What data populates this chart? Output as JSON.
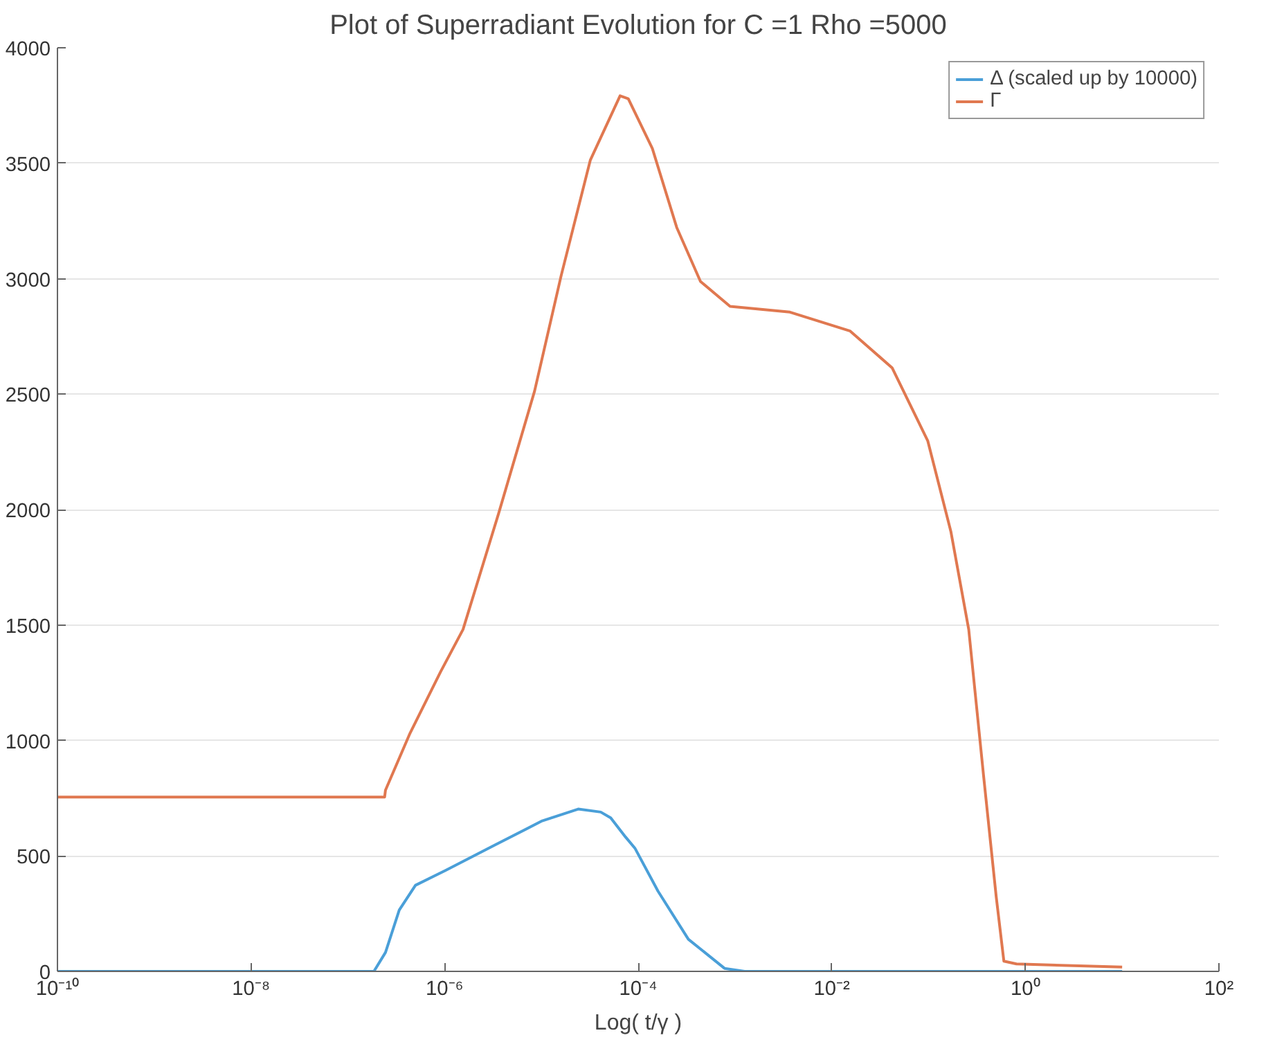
{
  "chart_data": {
    "type": "line",
    "title": "Plot of Superradiant Evolution for C =1 Rho =5000",
    "xlabel": "Log( t/γ )",
    "log": "x",
    "xlim": [
      1e-10,
      100
    ],
    "ylim": [
      0,
      4000
    ],
    "xticks": [
      {
        "value": 1e-10,
        "label": "10⁻¹⁰"
      },
      {
        "value": 1e-08,
        "label": "10⁻⁸"
      },
      {
        "value": 1e-06,
        "label": "10⁻⁶"
      },
      {
        "value": 0.0001,
        "label": "10⁻⁴"
      },
      {
        "value": 0.01,
        "label": "10⁻²"
      },
      {
        "value": 1,
        "label": "10⁰"
      },
      {
        "value": 100,
        "label": "10²"
      }
    ],
    "yticks": [
      0,
      500,
      1000,
      1500,
      2000,
      2500,
      3000,
      3500,
      4000
    ],
    "grid": "y",
    "legend": "top right",
    "line_style": "solid",
    "marker": "none",
    "series": [
      {
        "name": "Δ (scaled up by 10000)",
        "color": "#4a9fd8",
        "x": [
          1e-10,
          1.86e-07,
          2.45e-07,
          3.4e-07,
          5e-07,
          1.02e-06,
          3.2e-06,
          1.02e-05,
          2.4e-05,
          4.1e-05,
          5.2e-05,
          7.4e-05,
          9.3e-05,
          0.00016,
          0.00033,
          0.00078,
          0.00126,
          10
        ],
        "values": [
          0,
          0,
          82,
          266,
          373,
          437,
          544,
          652,
          703,
          690,
          665,
          582,
          532,
          348,
          139,
          13,
          0,
          0
        ]
      },
      {
        "name": "Γ",
        "color": "#e07850",
        "x": [
          1e-10,
          2.4e-07,
          2.45e-07,
          4.4e-07,
          9.1e-07,
          1.55e-06,
          3.6e-06,
          8.5e-06,
          1.6e-05,
          3.2e-05,
          6.5e-05,
          7.9e-05,
          0.00014,
          0.00025,
          0.00044,
          0.00089,
          0.0037,
          0.0155,
          0.042,
          0.098,
          0.17,
          0.26,
          0.37,
          0.5,
          0.6,
          0.81,
          10
        ],
        "values": [
          755,
          755,
          785,
          1032,
          1298,
          1481,
          1981,
          2513,
          3013,
          3513,
          3792,
          3779,
          3564,
          3222,
          2988,
          2880,
          2855,
          2773,
          2614,
          2298,
          1905,
          1481,
          848,
          323,
          44,
          32,
          19
        ]
      }
    ]
  }
}
